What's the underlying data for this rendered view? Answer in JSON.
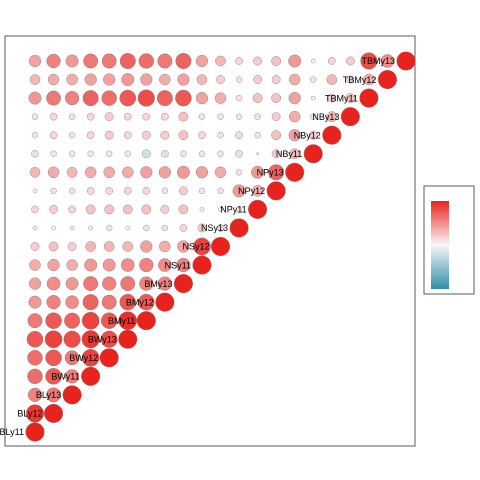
{
  "chart_data": {
    "type": "correlation-matrix-circles",
    "layout": "lower-triangle",
    "variables": [
      "BLy11",
      "BLy12",
      "BLy13",
      "BWy11",
      "BWy12",
      "BWy13",
      "BMy11",
      "BMy12",
      "BMy13",
      "NSy11",
      "NSy12",
      "NSy13",
      "NPy11",
      "NPy12",
      "NPy13",
      "NBy11",
      "NBy12",
      "NBy13",
      "TBMy11",
      "TBMy12",
      "TBMy13"
    ],
    "scale": {
      "min": -1,
      "max": 1
    },
    "colors": {
      "negative": "#2e8ea8",
      "neutral": "#f7f7f7",
      "positive": "#e8231e"
    },
    "legend": {
      "position": "right",
      "tick_labels_shown": false
    },
    "grid": false,
    "matrix": [
      [
        1.0
      ],
      [
        0.9,
        1.0
      ],
      [
        0.55,
        0.6,
        1.0
      ],
      [
        0.65,
        0.75,
        0.55,
        1.0
      ],
      [
        0.65,
        0.75,
        0.6,
        0.85,
        1.0
      ],
      [
        0.75,
        0.85,
        0.8,
        0.9,
        0.8,
        1.0
      ],
      [
        0.6,
        0.75,
        0.7,
        0.85,
        0.75,
        0.95,
        1.0
      ],
      [
        0.45,
        0.55,
        0.5,
        0.7,
        0.6,
        0.75,
        0.75,
        1.0
      ],
      [
        0.4,
        0.5,
        0.45,
        0.6,
        0.55,
        0.6,
        0.55,
        0.55,
        1.0
      ],
      [
        0.35,
        0.4,
        0.35,
        0.45,
        0.45,
        0.5,
        0.55,
        0.5,
        0.55,
        1.0
      ],
      [
        0.2,
        0.25,
        0.2,
        0.3,
        0.3,
        0.3,
        0.4,
        0.35,
        0.4,
        0.85,
        1.0
      ],
      [
        0.05,
        -0.05,
        0.05,
        0.05,
        0.1,
        0.05,
        0.1,
        0.1,
        0.15,
        0.2,
        0.15,
        1.0
      ],
      [
        0.15,
        0.2,
        0.15,
        0.25,
        0.25,
        0.25,
        0.25,
        0.2,
        0.25,
        0.05,
        0.05,
        0.1,
        1.0
      ],
      [
        0.05,
        0.1,
        0.1,
        0.15,
        0.15,
        0.15,
        0.15,
        0.1,
        0.2,
        0.1,
        0.1,
        0.45,
        0.35,
        1.0
      ],
      [
        0.3,
        0.35,
        0.3,
        0.35,
        0.35,
        0.35,
        0.4,
        0.4,
        0.45,
        0.4,
        0.35,
        0.1,
        0.45,
        0.7,
        1.0
      ],
      [
        -0.15,
        -0.1,
        -0.1,
        -0.1,
        -0.1,
        -0.1,
        -0.2,
        -0.15,
        -0.1,
        -0.1,
        -0.1,
        -0.15,
        0.0,
        0.2,
        0.3,
        1.0
      ],
      [
        0.1,
        0.15,
        0.1,
        0.15,
        0.2,
        0.15,
        0.2,
        0.2,
        0.25,
        0.15,
        0.1,
        -0.15,
        0.1,
        0.25,
        0.4,
        0.2,
        1.0
      ],
      [
        0.1,
        0.15,
        0.1,
        0.15,
        0.2,
        0.15,
        0.15,
        0.15,
        0.25,
        0.1,
        0.1,
        0.1,
        0.1,
        0.2,
        0.35,
        0.1,
        0.3,
        1.0
      ],
      [
        0.45,
        0.6,
        0.55,
        0.7,
        0.65,
        0.75,
        0.8,
        0.7,
        0.75,
        0.4,
        0.35,
        0.1,
        0.25,
        0.25,
        0.4,
        0.05,
        0.2,
        0.25,
        1.0
      ],
      [
        0.3,
        0.35,
        0.35,
        0.4,
        0.4,
        0.45,
        0.4,
        0.35,
        0.4,
        0.3,
        0.2,
        0.1,
        0.2,
        0.2,
        0.35,
        0.1,
        0.3,
        0.15,
        0.35,
        1.0
      ],
      [
        0.4,
        0.55,
        0.45,
        0.6,
        0.6,
        0.7,
        0.65,
        0.6,
        0.7,
        0.4,
        0.3,
        0.15,
        0.2,
        0.25,
        0.45,
        -0.05,
        0.15,
        0.2,
        0.8,
        0.5,
        1.0
      ]
    ]
  }
}
